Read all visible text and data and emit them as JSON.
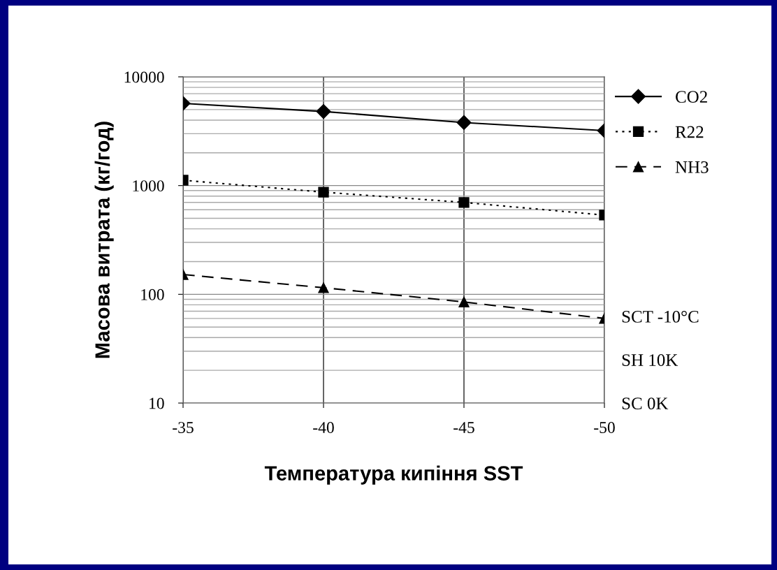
{
  "chart_data": {
    "type": "line",
    "xlabel": "Температура кипіння SST",
    "ylabel": "Масова витрата (кг/год)",
    "categories": [
      "-35",
      "-40",
      "-45",
      "-50"
    ],
    "series": [
      {
        "name": "CO2",
        "color": "#000000",
        "marker": "diamond",
        "line_style": "solid",
        "values": [
          5700,
          4800,
          3800,
          3200
        ]
      },
      {
        "name": "R22",
        "color": "#000000",
        "marker": "square",
        "line_style": "dotted",
        "values": [
          1120,
          870,
          700,
          535
        ]
      },
      {
        "name": "NH3",
        "color": "#000000",
        "marker": "triangle",
        "line_style": "dashed",
        "values": [
          152,
          115,
          85,
          60
        ]
      }
    ],
    "log": "y",
    "ylim": [
      10,
      10000
    ],
    "yticks": [
      10,
      100,
      1000,
      10000
    ],
    "grid": true,
    "legend": "right",
    "annotations": [
      "SCT -10°C",
      "SH 10K",
      "SC 0K"
    ]
  }
}
